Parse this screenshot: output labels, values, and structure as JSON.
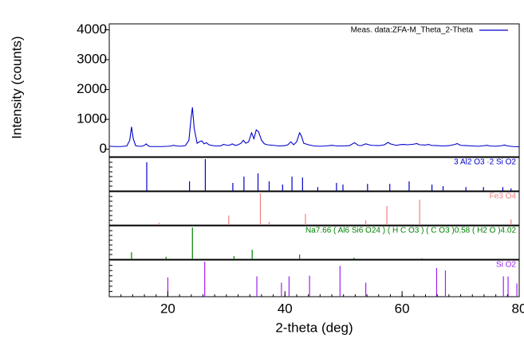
{
  "chart_data": [
    {
      "type": "line",
      "ylabel": "Intensity (counts)",
      "xlabel": "2-theta (deg)",
      "xlim": [
        10,
        80
      ],
      "xticks": [
        20,
        40,
        60,
        80
      ],
      "ylim": [
        -250,
        4200
      ],
      "yticks": [
        0,
        1000,
        2000,
        3000,
        4000
      ],
      "legend": "top-right",
      "series": [
        {
          "name": "Meas. data:ZFA-M_Theta_2-Theta",
          "color": "#0000cc",
          "x": [
            10,
            11,
            12,
            13,
            13.5,
            13.8,
            14.1,
            14.5,
            15,
            15.5,
            16,
            16.3,
            16.6,
            17,
            18,
            19,
            20,
            20.5,
            21,
            21.5,
            22,
            23,
            23.6,
            24,
            24.2,
            24.5,
            25,
            25.5,
            25.8,
            26.2,
            26.6,
            27,
            28,
            29,
            29.5,
            30,
            30.5,
            31,
            31.5,
            32,
            32.5,
            32.9,
            33.3,
            33.8,
            34.3,
            34.7,
            35.1,
            35.5,
            36,
            36.5,
            37,
            37.5,
            38,
            39,
            40,
            40.5,
            41,
            41.5,
            42,
            42.5,
            42.8,
            43.2,
            44,
            45,
            46,
            47,
            48,
            48.5,
            49,
            50,
            51,
            51.9,
            52.5,
            53,
            53.8,
            54.5,
            55,
            56,
            57,
            57.6,
            58,
            59,
            60,
            61,
            62,
            62.5,
            63,
            64,
            64.5,
            65,
            66,
            67,
            68,
            69,
            69.4,
            70,
            71,
            72,
            73,
            74,
            74.5,
            75,
            76,
            77,
            77.5,
            78,
            79,
            80
          ],
          "values": [
            100,
            90,
            90,
            110,
            300,
            750,
            350,
            120,
            100,
            100,
            130,
            180,
            120,
            90,
            90,
            90,
            100,
            110,
            130,
            110,
            100,
            120,
            300,
            1100,
            1400,
            700,
            200,
            260,
            280,
            180,
            220,
            150,
            110,
            110,
            160,
            140,
            130,
            180,
            130,
            150,
            200,
            300,
            200,
            250,
            550,
            350,
            650,
            580,
            300,
            180,
            150,
            140,
            130,
            110,
            120,
            150,
            250,
            150,
            250,
            550,
            450,
            200,
            150,
            110,
            100,
            110,
            130,
            120,
            110,
            110,
            120,
            220,
            130,
            120,
            180,
            140,
            130,
            120,
            150,
            230,
            180,
            130,
            160,
            150,
            170,
            190,
            150,
            140,
            160,
            130,
            120,
            110,
            120,
            160,
            190,
            130,
            120,
            110,
            100,
            120,
            130,
            110,
            100,
            120,
            140,
            110,
            90,
            80
          ]
        }
      ]
    },
    {
      "type": "stick",
      "ylim": [
        0,
        100
      ],
      "series": [
        {
          "name": "3 Al2 O3 ·2 Si O2",
          "color": "#0000cc",
          "x": [
            16.4,
            23.7,
            26.4,
            31.1,
            33.0,
            35.4,
            37.3,
            39.6,
            41.2,
            43.0,
            45.6,
            48.8,
            49.9,
            54.1,
            57.9,
            61.2,
            65.1,
            67.0,
            70.9,
            73.9,
            77.2,
            78.6
          ],
          "values": [
            90,
            30,
            100,
            25,
            45,
            55,
            30,
            20,
            45,
            42,
            12,
            25,
            20,
            22,
            22,
            30,
            20,
            15,
            12,
            12,
            12,
            8
          ]
        }
      ]
    },
    {
      "type": "stick",
      "ylim": [
        0,
        100
      ],
      "series": [
        {
          "name": "Fe3 O4",
          "color": "#f08080",
          "x": [
            18.5,
            30.4,
            35.8,
            37.3,
            43.5,
            53.8,
            57.4,
            63.0,
            78.6
          ],
          "values": [
            7,
            30,
            100,
            10,
            35,
            15,
            60,
            80,
            18
          ]
        }
      ]
    },
    {
      "type": "stick",
      "ylim": [
        0,
        100
      ],
      "series": [
        {
          "name": "Na7.66 ( Al6 Si6 O24 ) ( H C O3 ) ( C O3 )0.58 ( H2 O )4.02",
          "color": "#008000",
          "x": [
            13.8,
            19.7,
            24.2,
            31.3,
            34.4,
            42.5,
            51.8,
            63.4
          ],
          "values": [
            22,
            8,
            100,
            10,
            30,
            15,
            5,
            3
          ]
        }
      ]
    },
    {
      "type": "stick",
      "ylim": [
        0,
        100
      ],
      "series": [
        {
          "name": "Si O2",
          "color": "#a020f0",
          "x": [
            20.0,
            26.3,
            35.2,
            39.4,
            40.7,
            44.2,
            49.4,
            53.8,
            65.9,
            67.4,
            77.3,
            78.1,
            79.6
          ],
          "values": [
            55,
            100,
            58,
            40,
            58,
            60,
            88,
            40,
            82,
            75,
            58,
            58,
            38
          ]
        }
      ]
    }
  ]
}
